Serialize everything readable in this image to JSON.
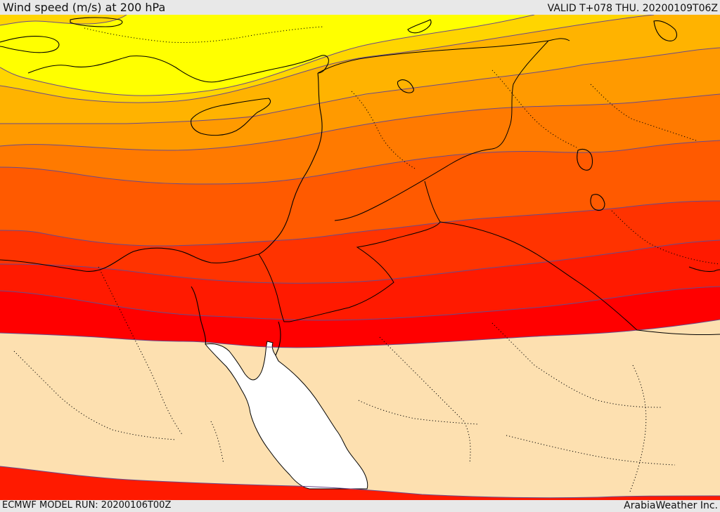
{
  "header": {
    "title": "Wind speed (m/s) at 200 hPa",
    "valid": "VALID T+078 THU. 20200109T06Z"
  },
  "footer": {
    "model_run": "ECMWF MODEL RUN: 20200106T00Z",
    "credit": "ArabiaWeather Inc."
  },
  "map": {
    "colors": {
      "band_yellow": "#ffff00",
      "band_gold": "#ffd500",
      "band_amber": "#ffb300",
      "band_orange": "#ff9a00",
      "band_dark_orange": "#ff7a00",
      "band_red_orange": "#ff5a00",
      "band_orange_red": "#ff3300",
      "band_red": "#ff1a00",
      "band_pure_red": "#ff0000",
      "low_wind": "#fde0b0",
      "sea": "#ffffff",
      "contour": "#6a4a8a",
      "coastline": "#000000"
    }
  }
}
